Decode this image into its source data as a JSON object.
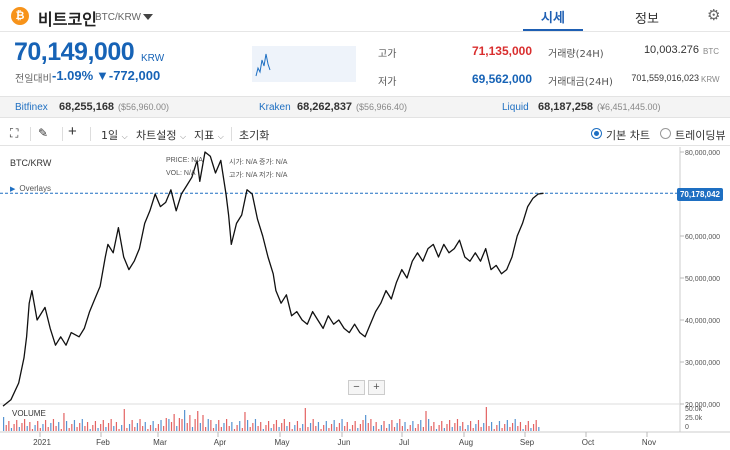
{
  "header": {
    "coin_symbol": "₿",
    "coin_name": "비트코인",
    "pair": "BTC/KRW",
    "tab_quotes": "시세",
    "tab_info": "정보",
    "settings_icon": "gear-icon"
  },
  "price": {
    "current": "70,149,000",
    "unit": "KRW",
    "change_label": "전일대비",
    "change_rate": "-1.09%",
    "change_amount": "▼-772,000"
  },
  "stats": {
    "high_label": "고가",
    "high_value": "71,135,000",
    "low_label": "저가",
    "low_value": "69,562,000",
    "volume_label": "거래량(24H)",
    "volume_value": "10,003.276",
    "volume_unit": "BTC",
    "amount_label": "거래대금(24H)",
    "amount_value": "701,559,016,023",
    "amount_unit": "KRW"
  },
  "exchanges": [
    {
      "name": "Bitfinex",
      "price": "68,255,168",
      "diff": "($56,960.00)"
    },
    {
      "name": "Kraken",
      "price": "68,262,837",
      "diff": "($56,966.40)"
    },
    {
      "name": "Liquid",
      "price": "68,187,258",
      "diff": "(¥6,451,445.00)"
    }
  ],
  "toolbar": {
    "period": "1일",
    "chart_settings": "차트설정",
    "indicators": "지표",
    "reset": "초기화",
    "basic_chart": "기본 차트",
    "trading_view": "트레이딩뷰"
  },
  "chart": {
    "pair_label": "BTC/KRW",
    "overlays": "Overlays",
    "ohlc": [
      {
        "label": "PRICE:",
        "value": "N/A"
      },
      {
        "label": "시가:",
        "value": "N/A"
      },
      {
        "label": "고가:",
        "value": "N/A"
      },
      {
        "label": "증가:",
        "value": "N/A"
      },
      {
        "label": "VOL:",
        "value": "N/A"
      },
      {
        "label": "고가:",
        "value": "N/A"
      },
      {
        "label": "저가:",
        "value": "N/A"
      }
    ],
    "last_price_tag": "70,178,042",
    "volume_label": "VOLUME",
    "zoom_out": "−",
    "zoom_in": "+",
    "line_color": "#111111",
    "accent_color": "#1e6fc2"
  },
  "chart_data": {
    "type": "line",
    "title": "BTC/KRW",
    "x_ticks": [
      "2021",
      "Feb",
      "Mar",
      "Apr",
      "May",
      "Jun",
      "Jul",
      "Aug",
      "Sep",
      "Oct",
      "Nov"
    ],
    "y_ticks": [
      "80,000,000",
      "70,000,000",
      "60,000,000",
      "50,000,000",
      "40,000,000",
      "30,000,000",
      "20,000,000"
    ],
    "volume_ticks": [
      "50.0k",
      "25.0k",
      "0"
    ],
    "ylim": [
      20000000,
      80000000
    ],
    "series": [
      {
        "values": [
          [
            0,
            19500000
          ],
          [
            3,
            21000000
          ],
          [
            6,
            25000000
          ],
          [
            8,
            31000000
          ],
          [
            9,
            36000000
          ],
          [
            10,
            44000000
          ],
          [
            11,
            47000000
          ],
          [
            13,
            40000000
          ],
          [
            16,
            43000000
          ],
          [
            18,
            38000000
          ],
          [
            20,
            34000000
          ],
          [
            22,
            36000000
          ],
          [
            24,
            34000000
          ],
          [
            26,
            37000000
          ],
          [
            29,
            36000000
          ],
          [
            31,
            38000000
          ],
          [
            33,
            42000000
          ],
          [
            35,
            45000000
          ],
          [
            37,
            48000000
          ],
          [
            39,
            55000000
          ],
          [
            40,
            58000000
          ],
          [
            42,
            56000000
          ],
          [
            44,
            62000000
          ],
          [
            46,
            55000000
          ],
          [
            48,
            52000000
          ],
          [
            50,
            54000000
          ],
          [
            52,
            57000000
          ],
          [
            54,
            63000000
          ],
          [
            56,
            66000000
          ],
          [
            58,
            70000000
          ],
          [
            60,
            67000000
          ],
          [
            62,
            68000000
          ],
          [
            64,
            71000000
          ],
          [
            66,
            66000000
          ],
          [
            68,
            70000000
          ],
          [
            70,
            72000000
          ],
          [
            72,
            74000000
          ],
          [
            74,
            78000000
          ],
          [
            75,
            73000000
          ],
          [
            77,
            80000000
          ],
          [
            79,
            79000000
          ],
          [
            81,
            75000000
          ],
          [
            83,
            78000000
          ],
          [
            85,
            70000000
          ],
          [
            86,
            65000000
          ],
          [
            87,
            58000000
          ],
          [
            89,
            63000000
          ],
          [
            91,
            65000000
          ],
          [
            93,
            71000000
          ],
          [
            95,
            70000000
          ],
          [
            97,
            64000000
          ],
          [
            99,
            60000000
          ],
          [
            101,
            55000000
          ],
          [
            103,
            51000000
          ],
          [
            104,
            47000000
          ],
          [
            106,
            44000000
          ],
          [
            108,
            46000000
          ],
          [
            110,
            41000000
          ],
          [
            112,
            42000000
          ],
          [
            114,
            40000000
          ],
          [
            116,
            39000000
          ],
          [
            118,
            42000000
          ],
          [
            120,
            40000000
          ],
          [
            122,
            38000000
          ],
          [
            124,
            41000000
          ],
          [
            126,
            39000000
          ],
          [
            128,
            40000000
          ],
          [
            130,
            38000000
          ],
          [
            132,
            37000000
          ],
          [
            134,
            39000000
          ],
          [
            136,
            37000000
          ],
          [
            138,
            36000000
          ],
          [
            140,
            39000000
          ],
          [
            142,
            42000000
          ],
          [
            144,
            44000000
          ],
          [
            146,
            47000000
          ],
          [
            148,
            45000000
          ],
          [
            150,
            49000000
          ],
          [
            152,
            52000000
          ],
          [
            154,
            50000000
          ],
          [
            156,
            54000000
          ],
          [
            158,
            56000000
          ],
          [
            160,
            54000000
          ],
          [
            162,
            57000000
          ],
          [
            164,
            58000000
          ],
          [
            166,
            55000000
          ],
          [
            168,
            58000000
          ],
          [
            170,
            56000000
          ],
          [
            172,
            57000000
          ],
          [
            174,
            59000000
          ],
          [
            176,
            55000000
          ],
          [
            178,
            54000000
          ],
          [
            180,
            56000000
          ],
          [
            182,
            54000000
          ],
          [
            184,
            57000000
          ],
          [
            186,
            52000000
          ],
          [
            188,
            53000000
          ],
          [
            190,
            51000000
          ],
          [
            192,
            52000000
          ],
          [
            194,
            55000000
          ],
          [
            196,
            60000000
          ],
          [
            198,
            63000000
          ],
          [
            200,
            67000000
          ],
          [
            202,
            69000000
          ],
          [
            204,
            70000000
          ],
          [
            206,
            70178042
          ]
        ]
      }
    ]
  }
}
